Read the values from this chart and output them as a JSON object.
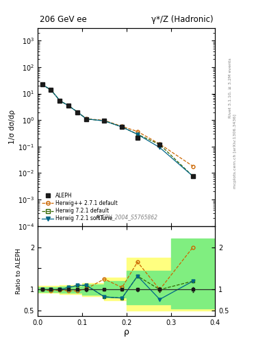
{
  "title_left": "206 GeV ee",
  "title_right": "γ*/Z (Hadronic)",
  "ylabel_main": "1/σ dσ/dρ",
  "ylabel_ratio": "Ratio to ALEPH",
  "xlabel": "ρ",
  "right_label_top": "Rivet 3.1.10, ≥ 3.2M events",
  "right_label_bottom": "mcplots.cern.ch [arXiv:1306.3436]",
  "analysis_label": "ALEPH_2004_S5765862",
  "x_data": [
    0.01,
    0.03,
    0.05,
    0.07,
    0.09,
    0.11,
    0.15,
    0.19,
    0.225,
    0.275,
    0.35
  ],
  "aleph_y": [
    22.0,
    14.0,
    5.5,
    3.5,
    2.0,
    1.1,
    0.95,
    0.55,
    0.22,
    0.12,
    0.0075
  ],
  "aleph_yerr": [
    0.5,
    0.4,
    0.15,
    0.1,
    0.06,
    0.04,
    0.02,
    0.015,
    0.008,
    0.006,
    0.0004
  ],
  "herwig_pp_y": [
    22.0,
    13.8,
    5.45,
    3.45,
    2.0,
    1.12,
    0.98,
    0.58,
    0.37,
    0.125,
    0.018
  ],
  "herwig721_default_y": [
    22.0,
    13.8,
    5.45,
    3.45,
    2.0,
    1.1,
    0.94,
    0.55,
    0.29,
    0.12,
    0.0075
  ],
  "herwig721_soft_y": [
    22.0,
    13.8,
    5.45,
    3.45,
    2.0,
    1.1,
    0.94,
    0.55,
    0.29,
    0.092,
    0.0075
  ],
  "ratio_herwig_pp": [
    1.0,
    0.97,
    0.99,
    0.97,
    0.97,
    1.02,
    1.25,
    1.05,
    1.65,
    1.0,
    2.0
  ],
  "ratio_herwig721_default": [
    1.0,
    1.0,
    1.0,
    1.05,
    1.1,
    1.1,
    0.83,
    0.8,
    1.32,
    1.0,
    1.2
  ],
  "ratio_herwig721_soft": [
    1.0,
    1.0,
    1.0,
    1.05,
    1.1,
    1.1,
    0.83,
    0.8,
    1.32,
    0.77,
    1.2
  ],
  "color_aleph": "#1a1a1a",
  "color_herwig_pp": "#cc6600",
  "color_herwig721_default": "#336600",
  "color_herwig721_soft": "#006688",
  "color_yellow": "#ffff80",
  "color_green": "#80ee80",
  "ylim_main": [
    0.0001,
    3000
  ],
  "ylim_ratio": [
    0.38,
    2.5
  ],
  "xlim": [
    0.0,
    0.4
  ],
  "yellow_band_x": [
    0.0,
    0.05,
    0.1,
    0.15,
    0.2,
    0.25,
    0.3,
    0.35,
    0.4
  ],
  "yellow_band_lo": [
    0.92,
    0.9,
    0.85,
    0.75,
    0.5,
    0.5,
    0.5,
    0.5,
    0.5
  ],
  "yellow_band_hi": [
    1.08,
    1.1,
    1.15,
    1.28,
    1.75,
    1.75,
    1.75,
    1.75,
    1.75
  ],
  "green_band_x": [
    0.0,
    0.05,
    0.1,
    0.15,
    0.2,
    0.25,
    0.3,
    0.35,
    0.4
  ],
  "green_band_lo": [
    0.95,
    0.93,
    0.88,
    0.82,
    0.65,
    0.65,
    0.55,
    0.55,
    0.55
  ],
  "green_band_hi": [
    1.05,
    1.07,
    1.12,
    1.2,
    1.45,
    1.45,
    2.2,
    2.2,
    2.2
  ]
}
